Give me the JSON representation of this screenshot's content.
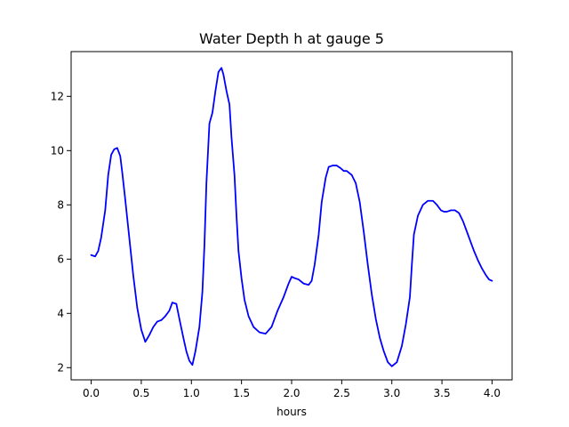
{
  "chart_data": {
    "type": "line",
    "title": "Water Depth h at gauge 5",
    "xlabel": "hours",
    "ylabel": "",
    "xlim": [
      -0.2,
      4.2
    ],
    "ylim": [
      1.55,
      13.65
    ],
    "xticks": [
      0.0,
      0.5,
      1.0,
      1.5,
      2.0,
      2.5,
      3.0,
      3.5,
      4.0
    ],
    "xtick_labels": [
      "0.0",
      "0.5",
      "1.0",
      "1.5",
      "2.0",
      "2.5",
      "3.0",
      "3.5",
      "4.0"
    ],
    "yticks": [
      2,
      4,
      6,
      8,
      10,
      12
    ],
    "ytick_labels": [
      "2",
      "4",
      "6",
      "8",
      "10",
      "12"
    ],
    "grid": false,
    "series": [
      {
        "color": "#0000ff",
        "x": [
          0.0,
          0.04,
          0.07,
          0.1,
          0.14,
          0.17,
          0.2,
          0.23,
          0.26,
          0.29,
          0.31,
          0.34,
          0.38,
          0.42,
          0.46,
          0.5,
          0.54,
          0.58,
          0.62,
          0.64,
          0.66,
          0.7,
          0.74,
          0.78,
          0.81,
          0.85,
          0.88,
          0.92,
          0.95,
          0.98,
          1.01,
          1.04,
          1.08,
          1.11,
          1.13,
          1.15,
          1.18,
          1.21,
          1.24,
          1.27,
          1.3,
          1.32,
          1.35,
          1.38,
          1.4,
          1.43,
          1.45,
          1.47,
          1.5,
          1.53,
          1.57,
          1.62,
          1.68,
          1.74,
          1.8,
          1.86,
          1.92,
          1.97,
          2.0,
          2.03,
          2.07,
          2.12,
          2.17,
          2.2,
          2.23,
          2.27,
          2.3,
          2.34,
          2.37,
          2.41,
          2.45,
          2.49,
          2.52,
          2.55,
          2.6,
          2.64,
          2.68,
          2.72,
          2.76,
          2.8,
          2.84,
          2.88,
          2.92,
          2.96,
          3.0,
          3.05,
          3.1,
          3.14,
          3.18,
          3.2,
          3.22,
          3.26,
          3.31,
          3.36,
          3.41,
          3.45,
          3.49,
          3.52,
          3.55,
          3.59,
          3.63,
          3.67,
          3.71,
          3.74,
          3.78,
          3.82,
          3.86,
          3.9,
          3.94,
          3.97,
          4.0
        ],
        "values": [
          6.15,
          6.1,
          6.3,
          6.8,
          7.8,
          9.1,
          9.85,
          10.05,
          10.1,
          9.8,
          9.2,
          8.2,
          6.8,
          5.4,
          4.2,
          3.4,
          2.95,
          3.2,
          3.5,
          3.6,
          3.7,
          3.75,
          3.9,
          4.1,
          4.4,
          4.35,
          3.8,
          3.1,
          2.6,
          2.25,
          2.1,
          2.6,
          3.5,
          4.8,
          6.5,
          8.8,
          11.0,
          11.4,
          12.2,
          12.9,
          13.05,
          12.8,
          12.2,
          11.7,
          10.5,
          9.1,
          7.6,
          6.3,
          5.3,
          4.5,
          3.9,
          3.5,
          3.3,
          3.25,
          3.5,
          4.1,
          4.6,
          5.1,
          5.35,
          5.3,
          5.25,
          5.1,
          5.05,
          5.2,
          5.8,
          6.9,
          8.1,
          9.0,
          9.4,
          9.45,
          9.45,
          9.35,
          9.25,
          9.25,
          9.1,
          8.8,
          8.1,
          7.0,
          5.8,
          4.7,
          3.8,
          3.1,
          2.6,
          2.2,
          2.05,
          2.2,
          2.8,
          3.6,
          4.6,
          5.8,
          6.9,
          7.6,
          8.0,
          8.15,
          8.15,
          8.0,
          7.8,
          7.75,
          7.75,
          7.8,
          7.8,
          7.7,
          7.4,
          7.1,
          6.7,
          6.3,
          5.95,
          5.65,
          5.4,
          5.25,
          5.2
        ]
      }
    ]
  }
}
